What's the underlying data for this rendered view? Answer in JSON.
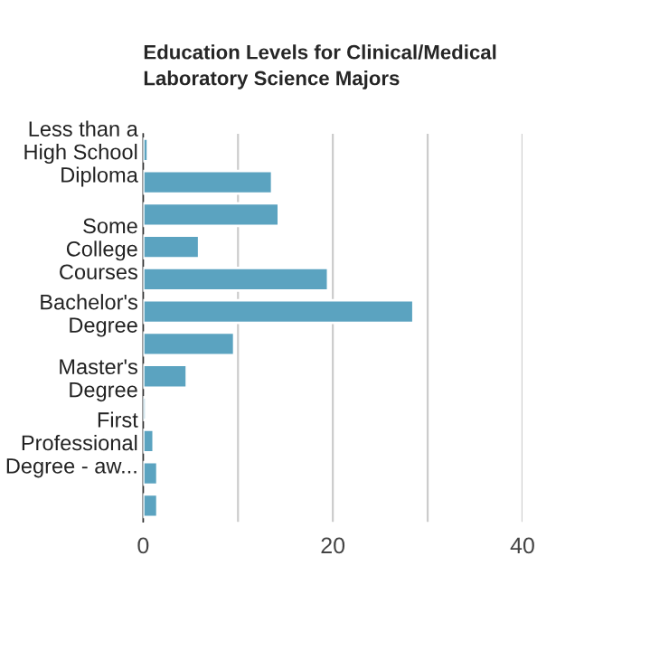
{
  "chart_data": {
    "type": "bar",
    "orientation": "horizontal",
    "title": "Education Levels for Clinical/Medical\nLaboratory Science Majors",
    "categories": [
      "Less than a\nHigh School\nDiploma",
      null,
      null,
      "Some\nCollege\nCourses",
      null,
      "Bachelor's\nDegree",
      null,
      "Master's\nDegree",
      null,
      "First\nProfessional\nDegree - aw...",
      null,
      null
    ],
    "values": [
      0.5,
      13.6,
      14.3,
      5.9,
      19.5,
      28.5,
      9.6,
      4.6,
      0.3,
      1.1,
      1.5,
      1.5
    ],
    "color": "#5ba3c0",
    "xlim": [
      0,
      40
    ],
    "xticks": [
      0,
      {
        "value": 10,
        "label": null
      },
      20,
      {
        "value": 30,
        "label": null
      },
      40
    ],
    "grid": "x",
    "legend": false
  }
}
